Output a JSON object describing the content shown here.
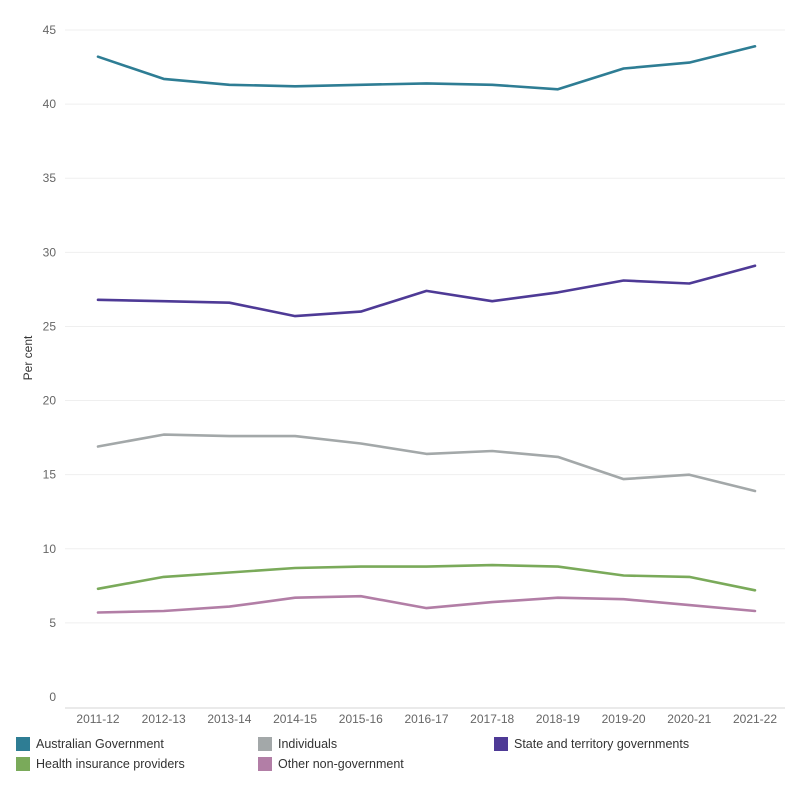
{
  "chart_data": {
    "type": "line",
    "title": "",
    "xlabel": "",
    "ylabel": "Per cent",
    "ylim": [
      0,
      45
    ],
    "yticks": [
      0,
      5,
      10,
      15,
      20,
      25,
      30,
      35,
      40,
      45
    ],
    "grid": true,
    "legend_placement": "bottom",
    "categories": [
      "2011-12",
      "2012-13",
      "2013-14",
      "2014-15",
      "2015-16",
      "2016-17",
      "2017-18",
      "2018-19",
      "2019-20",
      "2020-21",
      "2021-22"
    ],
    "series": [
      {
        "name": "Australian Government",
        "color": "#2e7d94",
        "values": [
          43.2,
          41.7,
          41.3,
          41.2,
          41.3,
          41.4,
          41.3,
          41.0,
          42.4,
          42.8,
          43.9
        ]
      },
      {
        "name": "Individuals",
        "color": "#a3a8a9",
        "values": [
          16.9,
          17.7,
          17.6,
          17.6,
          17.1,
          16.4,
          16.6,
          16.2,
          14.7,
          15.0,
          13.9
        ]
      },
      {
        "name": "State and territory governments",
        "color": "#4e3a96",
        "values": [
          26.8,
          26.7,
          26.6,
          25.7,
          26.0,
          27.4,
          26.7,
          27.3,
          28.1,
          27.9,
          29.1
        ]
      },
      {
        "name": "Health insurance providers",
        "color": "#7aaa5a",
        "values": [
          7.3,
          8.1,
          8.4,
          8.7,
          8.8,
          8.8,
          8.9,
          8.8,
          8.2,
          8.1,
          7.2
        ]
      },
      {
        "name": "Other non-government",
        "color": "#b27ea6",
        "values": [
          5.7,
          5.8,
          6.1,
          6.7,
          6.8,
          6.0,
          6.4,
          6.7,
          6.6,
          6.2,
          5.8
        ]
      }
    ]
  }
}
